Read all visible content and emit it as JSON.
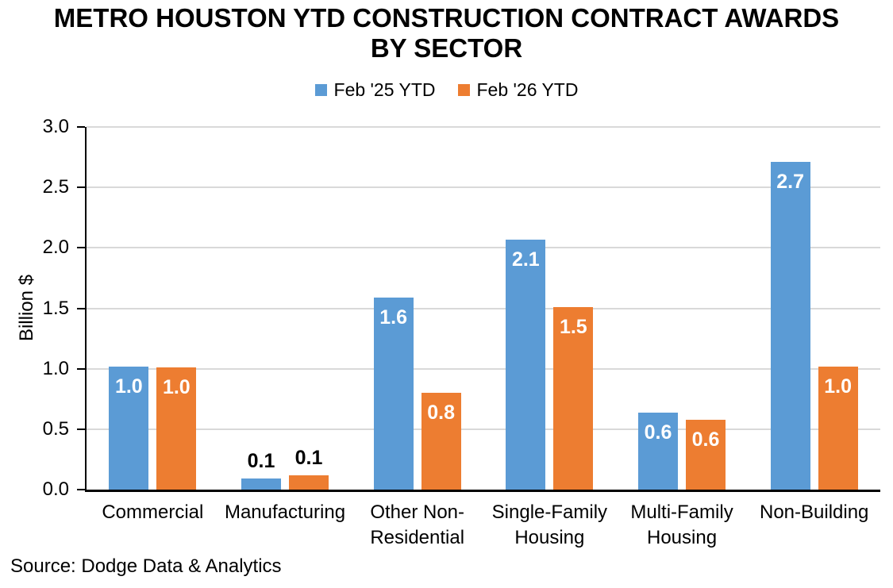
{
  "title_lines": [
    "METRO HOUSTON YTD CONSTRUCTION CONTRACT AWARDS",
    "BY SECTOR"
  ],
  "source": "Source: Dodge Data & Analytics",
  "colors": {
    "series1": "#5B9BD5",
    "series2": "#ED7D31",
    "gridline": "#D9D9D9",
    "axis": "#000000",
    "label_inside": "#FFFFFF",
    "label_outside": "#000000"
  },
  "chart_data": {
    "type": "bar",
    "title": "METRO HOUSTON YTD CONSTRUCTION CONTRACT AWARDS BY SECTOR",
    "xlabel": "",
    "ylabel": "Billion $",
    "ylim": [
      0.0,
      3.0
    ],
    "ytick_step": 0.5,
    "yticks": [
      "0.0",
      "0.5",
      "1.0",
      "1.5",
      "2.0",
      "2.5",
      "3.0"
    ],
    "grid": true,
    "legend_position": "top",
    "categories": [
      "Commercial",
      "Manufacturing",
      "Other Non-Residential",
      "Single-Family Housing",
      "Multi-Family Housing",
      "Non-Building"
    ],
    "series": [
      {
        "name": "Feb '25 YTD",
        "color": "#5B9BD5",
        "values": [
          1.02,
          0.09,
          1.59,
          2.07,
          0.64,
          2.71
        ],
        "labels": [
          "1.0",
          "0.1",
          "1.6",
          "2.1",
          "0.6",
          "2.7"
        ]
      },
      {
        "name": "Feb '26 YTD",
        "color": "#ED7D31",
        "values": [
          1.01,
          0.12,
          0.8,
          1.51,
          0.58,
          1.02
        ],
        "labels": [
          "1.0",
          "0.1",
          "0.8",
          "1.5",
          "0.6",
          "1.0"
        ]
      }
    ]
  }
}
